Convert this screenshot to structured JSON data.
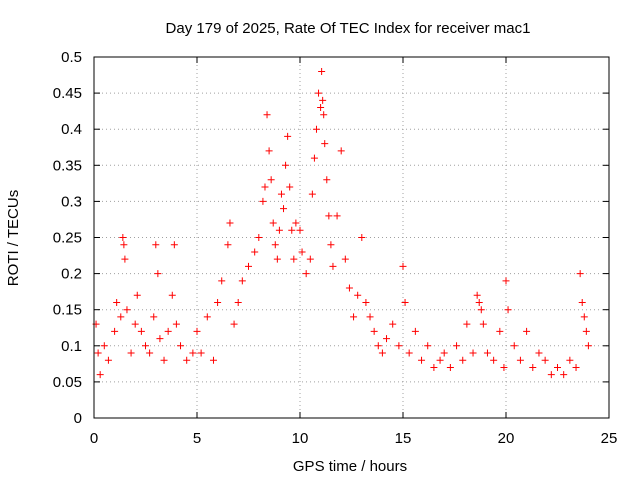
{
  "chart_data": {
    "type": "scatter",
    "title": "Day 179 of 2025, Rate Of TEC Index for receiver mac1",
    "xlabel": "GPS time / hours",
    "ylabel": "ROTI / TECUs",
    "xlim": [
      0,
      25
    ],
    "ylim": [
      0,
      0.5
    ],
    "xticks": [
      0,
      5,
      10,
      15,
      20,
      25
    ],
    "xtick_labels": [
      "0",
      "5",
      "10",
      "15",
      "20",
      "25"
    ],
    "yticks": [
      0,
      0.05,
      0.1,
      0.15,
      0.2,
      0.25,
      0.3,
      0.35,
      0.4,
      0.45,
      0.5
    ],
    "ytick_labels": [
      "0",
      "0.05",
      "0.1",
      "0.15",
      "0.2",
      "0.25",
      "0.3",
      "0.35",
      "0.4",
      "0.45",
      "0.5"
    ],
    "grid": true,
    "marker": "plus",
    "color": "#ff0000",
    "series": [
      {
        "x": [
          0.1,
          0.2,
          0.3,
          0.5,
          0.7,
          1.0,
          1.1,
          1.3,
          1.4,
          1.45,
          1.5,
          1.6,
          1.8,
          2.0,
          2.1,
          2.3,
          2.5,
          2.7,
          2.9,
          3.0,
          3.1,
          3.2,
          3.4,
          3.6,
          3.8,
          3.9,
          4.0,
          4.2,
          4.5,
          4.8,
          5.0,
          5.2,
          5.5,
          5.8,
          6.0,
          6.2,
          6.5,
          6.6,
          6.8,
          7.0,
          7.2,
          7.5,
          7.8,
          8.0,
          8.2,
          8.3,
          8.4,
          8.5,
          8.6,
          8.7,
          8.8,
          8.9,
          9.0,
          9.1,
          9.2,
          9.3,
          9.4,
          9.5,
          9.6,
          9.7,
          9.8,
          10.0,
          10.1,
          10.3,
          10.5,
          10.6,
          10.7,
          10.8,
          10.9,
          11.0,
          11.05,
          11.1,
          11.15,
          11.2,
          11.3,
          11.4,
          11.5,
          11.6,
          11.8,
          12.0,
          12.2,
          12.4,
          12.6,
          12.8,
          13.0,
          13.2,
          13.4,
          13.6,
          13.8,
          14.0,
          14.2,
          14.5,
          14.8,
          15.0,
          15.1,
          15.3,
          15.6,
          15.9,
          16.2,
          16.5,
          16.8,
          17.0,
          17.3,
          17.6,
          17.9,
          18.1,
          18.4,
          18.6,
          18.7,
          18.8,
          18.9,
          19.1,
          19.4,
          19.7,
          19.9,
          20.0,
          20.1,
          20.4,
          20.7,
          21.0,
          21.3,
          21.6,
          21.9,
          22.2,
          22.5,
          22.8,
          23.1,
          23.4,
          23.6,
          23.7,
          23.8,
          23.9,
          24.0
        ],
        "y": [
          0.13,
          0.09,
          0.06,
          0.1,
          0.08,
          0.12,
          0.16,
          0.14,
          0.25,
          0.24,
          0.22,
          0.15,
          0.09,
          0.13,
          0.17,
          0.12,
          0.1,
          0.09,
          0.14,
          0.24,
          0.2,
          0.11,
          0.08,
          0.12,
          0.17,
          0.24,
          0.13,
          0.1,
          0.08,
          0.09,
          0.12,
          0.09,
          0.14,
          0.08,
          0.16,
          0.19,
          0.24,
          0.27,
          0.13,
          0.16,
          0.19,
          0.21,
          0.23,
          0.25,
          0.3,
          0.32,
          0.42,
          0.37,
          0.33,
          0.27,
          0.24,
          0.22,
          0.26,
          0.31,
          0.29,
          0.35,
          0.39,
          0.32,
          0.26,
          0.22,
          0.27,
          0.26,
          0.23,
          0.2,
          0.22,
          0.31,
          0.36,
          0.4,
          0.45,
          0.43,
          0.48,
          0.44,
          0.42,
          0.38,
          0.33,
          0.28,
          0.24,
          0.21,
          0.28,
          0.37,
          0.22,
          0.18,
          0.14,
          0.17,
          0.25,
          0.16,
          0.14,
          0.12,
          0.1,
          0.09,
          0.11,
          0.13,
          0.1,
          0.21,
          0.16,
          0.09,
          0.12,
          0.08,
          0.1,
          0.07,
          0.08,
          0.09,
          0.07,
          0.1,
          0.08,
          0.13,
          0.09,
          0.17,
          0.16,
          0.15,
          0.13,
          0.09,
          0.08,
          0.12,
          0.07,
          0.19,
          0.15,
          0.1,
          0.08,
          0.12,
          0.07,
          0.09,
          0.08,
          0.06,
          0.07,
          0.06,
          0.08,
          0.07,
          0.2,
          0.16,
          0.14,
          0.12,
          0.1
        ]
      }
    ]
  }
}
